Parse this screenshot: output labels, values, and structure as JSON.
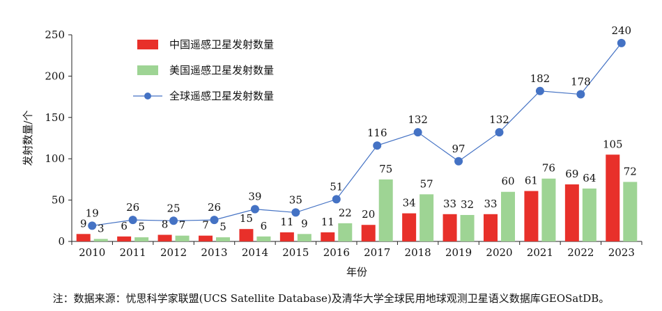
{
  "chart_data": {
    "type": "bar",
    "categories": [
      "2010",
      "2011",
      "2012",
      "2013",
      "2014",
      "2015",
      "2016",
      "2017",
      "2018",
      "2019",
      "2020",
      "2021",
      "2022",
      "2023"
    ],
    "series": [
      {
        "name": "中国遥感卫星发射数量",
        "kind": "bar",
        "color": "#e8302a",
        "values": [
          9,
          6,
          8,
          7,
          15,
          11,
          11,
          20,
          34,
          33,
          33,
          61,
          69,
          105
        ]
      },
      {
        "name": "美国遥感卫星发射数量",
        "kind": "bar",
        "color": "#9ed494",
        "values": [
          3,
          5,
          7,
          5,
          6,
          9,
          22,
          75,
          57,
          32,
          60,
          76,
          64,
          72
        ]
      },
      {
        "name": "全球遥感卫星发射数量",
        "kind": "line",
        "color": "#4472c4",
        "values": [
          19,
          26,
          25,
          26,
          39,
          35,
          51,
          116,
          132,
          97,
          132,
          182,
          178,
          240
        ]
      }
    ],
    "xlabel": "年份",
    "ylabel": "发射数量/个",
    "ylim": [
      0,
      250
    ],
    "yticks": [
      0,
      50,
      100,
      150,
      200,
      250
    ],
    "legend_position": "top-left",
    "grid": false
  },
  "note": "注：数据来源：忧思科学家联盟(UCS Satellite Database)及清华大学全球民用地球观测卫星语义数据库GEOSatDB。"
}
